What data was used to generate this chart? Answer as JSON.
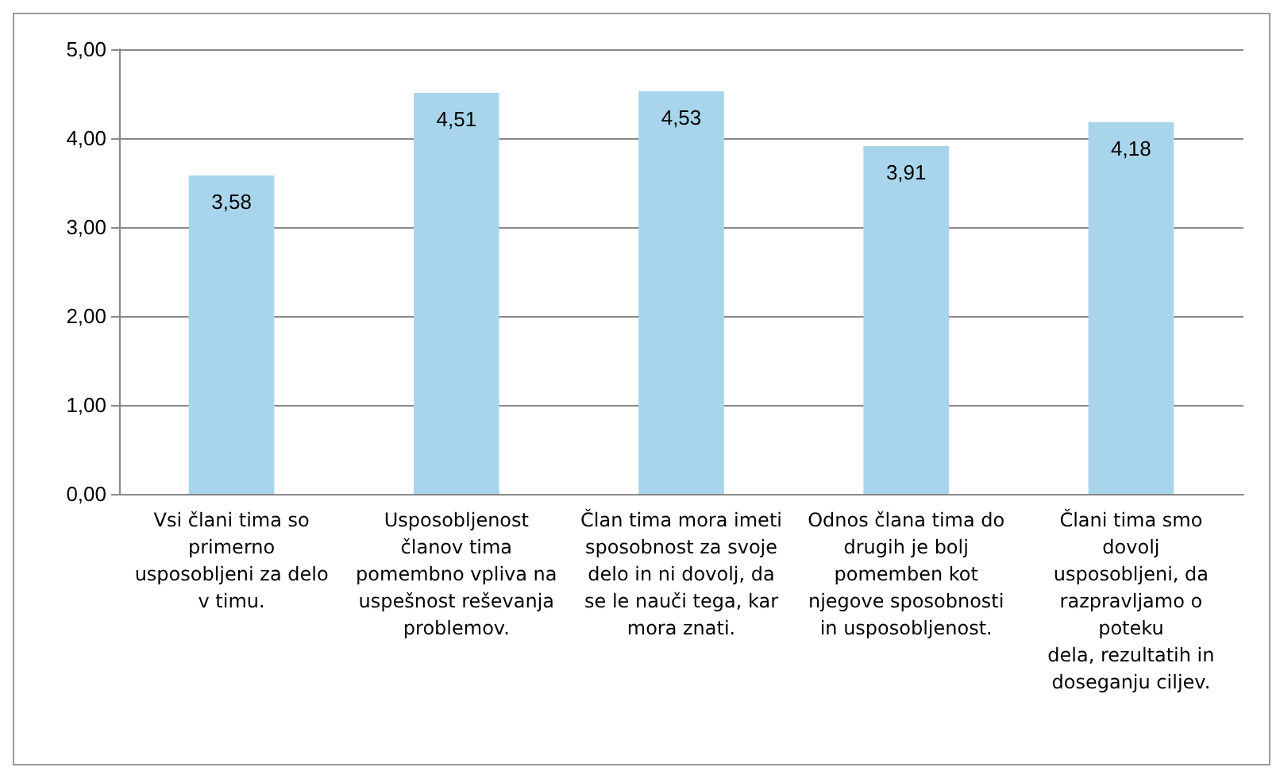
{
  "chart_data": {
    "type": "bar",
    "categories": [
      "Vsi člani tima so\nprimerno\nusposobljeni za delo\nv timu.",
      "Usposobljenost\nčlanov tima\npomembno vpliva na\nuspešnost reševanja\nproblemov.",
      "Član tima mora imeti\nsposobnost za svoje\ndelo in ni dovolj, da\nse le nauči tega, kar\nmora znati.",
      "Odnos člana tima do\ndrugih je bolj\npomemben kot\nnjegove sposobnosti\nin usposobljenost.",
      "Člani tima smo\ndovolj\nusposobljeni, da\nrazpravljamo o\npoteku\ndela, rezultatih in\ndoseganju ciljev."
    ],
    "values": [
      3.58,
      4.51,
      4.53,
      3.91,
      4.18
    ],
    "value_labels": [
      "3,58",
      "4,51",
      "4,53",
      "3,91",
      "4,18"
    ],
    "color": "#a9d5ec",
    "ylim": [
      0,
      5
    ],
    "yticks": [
      {
        "value": 0,
        "label": "0,00"
      },
      {
        "value": 1,
        "label": "1,00"
      },
      {
        "value": 2,
        "label": "2,00"
      },
      {
        "value": 3,
        "label": "3,00"
      },
      {
        "value": 4,
        "label": "4,00"
      },
      {
        "value": 5,
        "label": "5,00"
      }
    ],
    "grid": "y"
  }
}
